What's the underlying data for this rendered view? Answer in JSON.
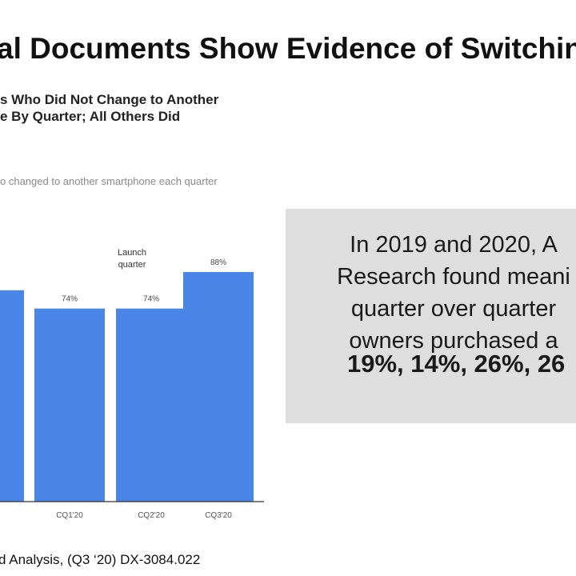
{
  "slide": {
    "title": "al Documents Show Evidence of Switchin"
  },
  "chart_heading": {
    "line1": "s Who Did Not Change to Another",
    "line2": "e By Quarter; All Others Did"
  },
  "callout": {
    "lines": [
      "In 2019 and 2020, A",
      "Research found meani",
      "quarter over quarter",
      "owners purchased a"
    ],
    "stats": "19%, 14%, 26%, 26"
  },
  "source": "d Analysis, (Q3 ‘20) DX-3084.022",
  "colors": {
    "bar": "#4a86e8",
    "callout_bg": "#dedede",
    "axis": "#333333"
  },
  "chart_data": {
    "type": "bar",
    "subtitle": "o changed to another smartphone each quarter",
    "annotation": {
      "text_lines": [
        "Launch",
        "quarter"
      ]
    },
    "categories": [
      "",
      "CQ1'20",
      "CQ2'20",
      "CQ3'20"
    ],
    "values": [
      81,
      74,
      74,
      88
    ],
    "value_labels": [
      "",
      "74%",
      "74%",
      "88%"
    ],
    "ylim": [
      0,
      100
    ],
    "xlabel": "",
    "ylabel": "",
    "grid": false
  }
}
